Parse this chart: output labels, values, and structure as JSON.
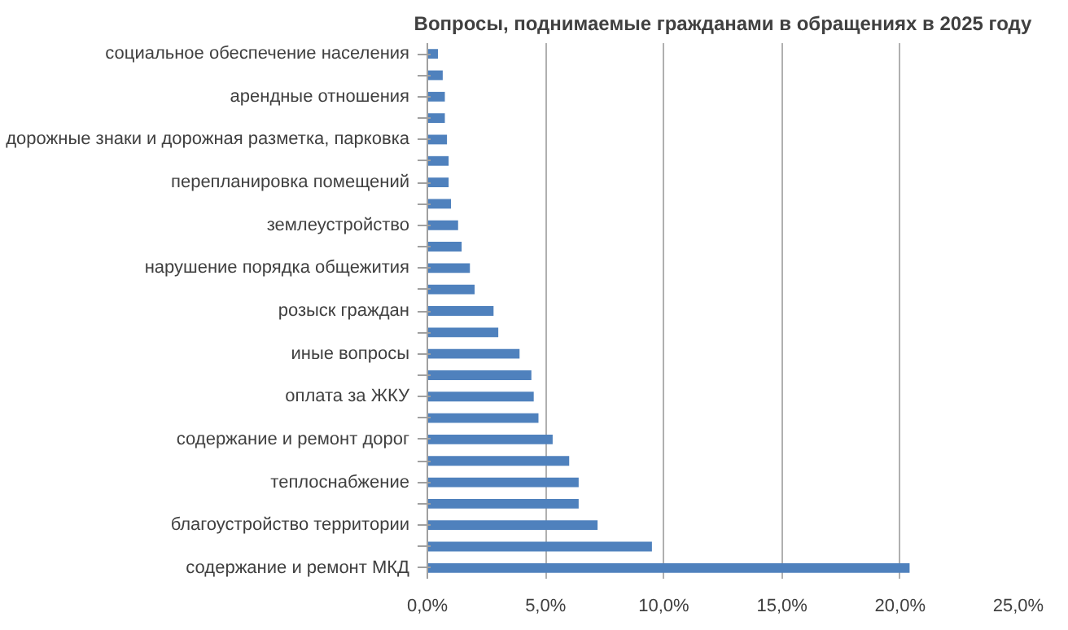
{
  "chart_data": {
    "type": "bar",
    "orientation": "horizontal",
    "title": "Вопросы, поднимаемые гражданами в обращениях в 2025 году",
    "categories": [
      "социальное обеспечение населения",
      null,
      "арендные отношения",
      null,
      "дорожные знаки и дорожная разметка, парковка",
      null,
      "перепланировка помещений",
      null,
      "землеустройство",
      null,
      "нарушение порядка общежития",
      null,
      "розыск граждан",
      null,
      "иные вопросы",
      null,
      "оплата за ЖКУ",
      null,
      "содержание и ремонт дорог",
      null,
      "теплоснабжение",
      null,
      "благоустройство территории",
      null,
      "содержание и ремонт МКД"
    ],
    "values": [
      0.45,
      0.65,
      0.74,
      0.74,
      0.83,
      0.9,
      0.9,
      1.0,
      1.3,
      1.45,
      1.8,
      2.0,
      2.8,
      3.0,
      3.9,
      4.4,
      4.5,
      4.7,
      5.3,
      6.0,
      6.4,
      6.4,
      7.2,
      9.5,
      20.4
    ],
    "color": "#4f81bd",
    "xlim": [
      0,
      25
    ],
    "xticks": [
      {
        "value": 0,
        "label": "0,0%"
      },
      {
        "value": 5,
        "label": "5,0%"
      },
      {
        "value": 10,
        "label": "10,0%"
      },
      {
        "value": 15,
        "label": "15,0%"
      },
      {
        "value": 20,
        "label": "20,0%"
      },
      {
        "value": 25,
        "label": "25,0%"
      }
    ],
    "grid": "x"
  }
}
